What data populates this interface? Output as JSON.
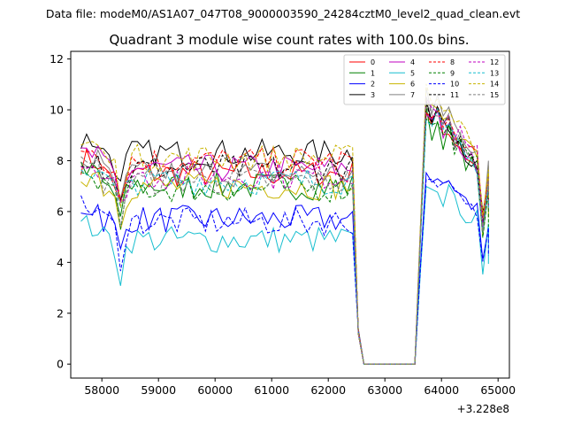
{
  "figure": {
    "suptitle": "Data file: modeM0/AS1A07_047T08_9000003590_24284cztM0_level2_quad_clean.evt"
  },
  "chart_data": {
    "type": "line",
    "title": "Quadrant 3 module wise count rates with 100.0s bins.",
    "xlabel": "",
    "ylabel": "",
    "x_offset_label": "+3.228e8",
    "xlim": [
      57450,
      65200
    ],
    "ylim": [
      -0.55,
      12.3
    ],
    "x_ticks": [
      58000,
      59000,
      60000,
      61000,
      62000,
      63000,
      64000,
      65000
    ],
    "y_ticks": [
      0,
      2,
      4,
      6,
      8,
      10,
      12
    ],
    "grid": false,
    "legend_position": "top-right",
    "legend_columns": 4,
    "series": [
      {
        "name": "0",
        "color": "#ff0000",
        "dash": false
      },
      {
        "name": "1",
        "color": "#008000",
        "dash": false
      },
      {
        "name": "2",
        "color": "#0000ff",
        "dash": false
      },
      {
        "name": "3",
        "color": "#000000",
        "dash": false
      },
      {
        "name": "4",
        "color": "#c000c0",
        "dash": false
      },
      {
        "name": "5",
        "color": "#17becf",
        "dash": false
      },
      {
        "name": "6",
        "color": "#c8b400",
        "dash": false
      },
      {
        "name": "7",
        "color": "#808080",
        "dash": false
      },
      {
        "name": "8",
        "color": "#ff0000",
        "dash": true
      },
      {
        "name": "9",
        "color": "#008000",
        "dash": true
      },
      {
        "name": "10",
        "color": "#0000ff",
        "dash": true
      },
      {
        "name": "11",
        "color": "#000000",
        "dash": true
      },
      {
        "name": "12",
        "color": "#c000c0",
        "dash": true
      },
      {
        "name": "13",
        "color": "#17becf",
        "dash": true
      },
      {
        "name": "14",
        "color": "#c8b400",
        "dash": true
      },
      {
        "name": "15",
        "color": "#808080",
        "dash": true
      }
    ],
    "x_start": 57630,
    "x_step": 100,
    "segment_groups": [
      {
        "from": 57630,
        "to": 62430,
        "level": "high"
      },
      {
        "from": 62530,
        "to": 62630,
        "level": "drop"
      },
      {
        "from": 62730,
        "to": 63530,
        "level": "zero"
      },
      {
        "from": 63630,
        "to": 64830,
        "level": "flare"
      }
    ],
    "series_levels": [
      {
        "name": "0",
        "base": 7.5,
        "flare": 9.3
      },
      {
        "name": "1",
        "base": 7.0,
        "flare": 9.1
      },
      {
        "name": "2",
        "base": 5.7,
        "flare": 7.2
      },
      {
        "name": "3",
        "base": 8.3,
        "flare": 9.5
      },
      {
        "name": "4",
        "base": 7.7,
        "flare": 9.3
      },
      {
        "name": "5",
        "base": 4.9,
        "flare": 6.7
      },
      {
        "name": "6",
        "base": 7.0,
        "flare": 9.8
      },
      {
        "name": "7",
        "base": 7.5,
        "flare": 10.0
      },
      {
        "name": "8",
        "base": 8.0,
        "flare": 9.5
      },
      {
        "name": "9",
        "base": 6.9,
        "flare": 9.2
      },
      {
        "name": "10",
        "base": 5.6,
        "flare": 7.0
      },
      {
        "name": "11",
        "base": 7.7,
        "flare": 9.4
      },
      {
        "name": "12",
        "base": 7.4,
        "flare": 9.7
      },
      {
        "name": "13",
        "base": 7.2,
        "flare": 9.2
      },
      {
        "name": "14",
        "base": 8.1,
        "flare": 10.2
      },
      {
        "name": "15",
        "base": 7.2,
        "flare": 9.6
      }
    ]
  }
}
